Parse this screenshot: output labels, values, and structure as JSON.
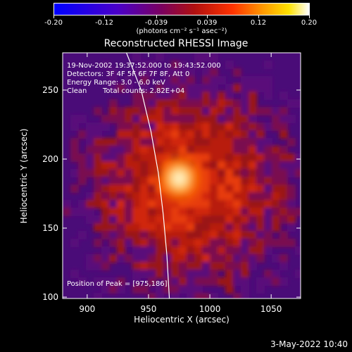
{
  "colorbar": {
    "ticks": [
      "-0.20",
      "-0.12",
      "-0.039",
      "0.039",
      "0.12",
      "0.20"
    ],
    "tick_values": [
      -0.2,
      -0.12,
      -0.039,
      0.039,
      0.12,
      0.2
    ],
    "range": [
      -0.2,
      0.2
    ],
    "units": "(photons cm⁻² s⁻¹ asec⁻²)"
  },
  "annotations": {
    "line1": "19-Nov-2002 19:37:52.000 to 19:43:52.000",
    "line2": "Detectors: 3F 4F 5F 6F 7F 8F, Att 0",
    "line3": "Energy Range: 3.0 - 6.0 keV",
    "line4a": "Clean",
    "line4b": "Total counts: 2.82E+04",
    "peak": "Position of Peak = [975,186]"
  },
  "footer_date": "3-May-2022 10:40",
  "chart_data": {
    "type": "heatmap",
    "title": "Reconstructed RHESSI Image",
    "xlabel": "Heliocentric X (arcsec)",
    "ylabel": "Heliocentric Y (arcsec)",
    "xlim": [
      880,
      1074
    ],
    "ylim": [
      99,
      277
    ],
    "x_ticks": [
      900,
      950,
      1000,
      1050
    ],
    "y_ticks": [
      100,
      150,
      200,
      250
    ],
    "colormap": [
      "#0000ff",
      "#4b00c8",
      "#7a0060",
      "#b01010",
      "#ff3300",
      "#ff9a00",
      "#ffe200",
      "#ffffff"
    ],
    "peak": [
      975,
      186
    ],
    "source_region_center": [
      975,
      186
    ],
    "limb_curve": [
      [
        932,
        277
      ],
      [
        944,
        250
      ],
      [
        952,
        220
      ],
      [
        958,
        190
      ],
      [
        962,
        160
      ],
      [
        965,
        130
      ],
      [
        967,
        99
      ]
    ]
  }
}
